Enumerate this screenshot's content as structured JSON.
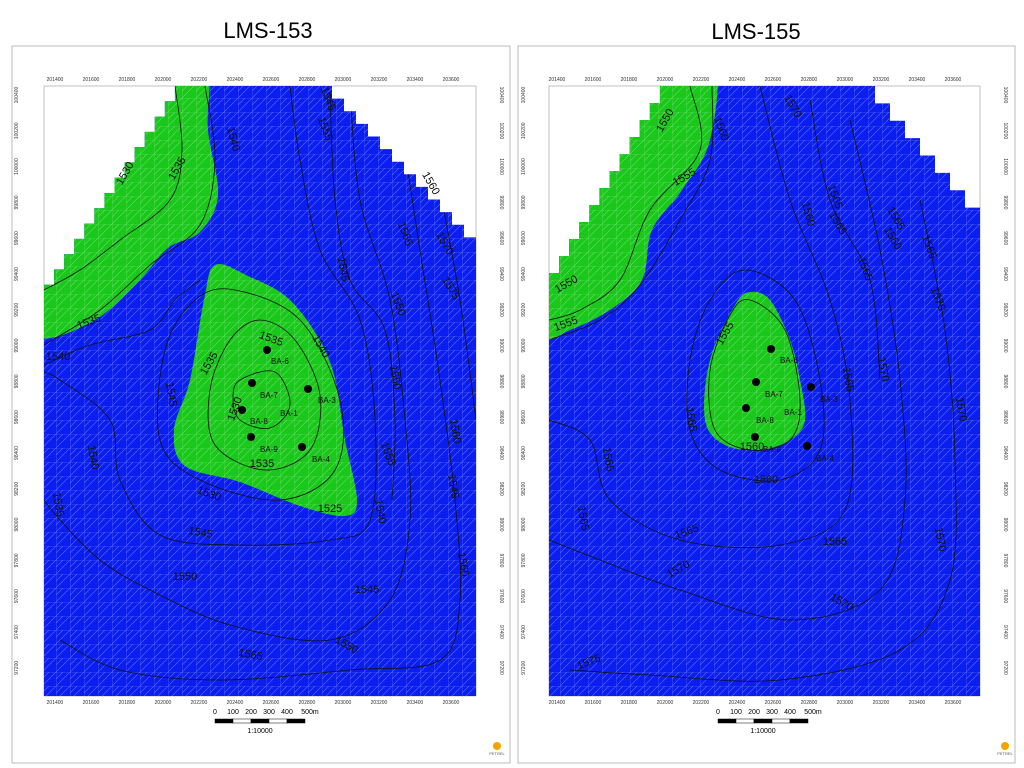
{
  "panels": [
    {
      "title": "LMS-153",
      "x_axis_labels": [
        201400,
        201600,
        201800,
        202000,
        202200,
        202400,
        202600,
        202800,
        203000,
        203200,
        203400,
        203600
      ],
      "y_axis_labels": [
        100400,
        100200,
        100000,
        99800,
        99600,
        99400,
        99200,
        99000,
        98800,
        98600,
        98400,
        98200,
        98000,
        97800,
        97600,
        97400,
        97200
      ],
      "contour_labels": [
        "1530",
        "1535",
        "1540",
        "1545",
        "1555",
        "1560",
        "1565",
        "1570",
        "1575",
        "1535",
        "1540",
        "1535",
        "1535",
        "1530",
        "1535",
        "1540",
        "1545",
        "1550",
        "1545",
        "1540",
        "1535",
        "1530",
        "1525",
        "1540",
        "1550",
        "1555",
        "1560",
        "1545",
        "1550",
        "1545",
        "1550",
        "1565",
        "1560",
        "1545"
      ],
      "wells": [
        "BA-6",
        "BA-7",
        "BA-3",
        "BA-1",
        "BA-8",
        "BA-9",
        "BA-4"
      ],
      "scale_bar": {
        "labels": [
          "0",
          "100",
          "200",
          "300",
          "400",
          "500m"
        ],
        "ratio": "1:10000"
      },
      "logo": "PETREL"
    },
    {
      "title": "LMS-155",
      "x_axis_labels": [
        201400,
        201600,
        201800,
        202000,
        202200,
        202400,
        202600,
        202800,
        203000,
        203200,
        203400,
        203600
      ],
      "y_axis_labels": [
        100400,
        100200,
        100000,
        99800,
        99600,
        99400,
        99200,
        99000,
        98800,
        98600,
        98400,
        98200,
        98000,
        97800,
        97600,
        97400,
        97200
      ],
      "contour_labels": [
        "1550",
        "1555",
        "1550",
        "1555",
        "1555",
        "1560",
        "1570",
        "1565",
        "1565",
        "1560",
        "1565",
        "1560",
        "1565",
        "1565",
        "1570",
        "1570",
        "1570",
        "1565",
        "1560",
        "1560",
        "1565",
        "1565",
        "1570",
        "1570",
        "1570",
        "1575",
        "1565",
        "1565",
        "1565"
      ],
      "wells": [
        "BA-6",
        "BA-7",
        "BA-3",
        "BA-1",
        "BA-8",
        "BA-9",
        "BA-4"
      ],
      "scale_bar": {
        "labels": [
          "0",
          "100",
          "200",
          "300",
          "400",
          "500m"
        ],
        "ratio": "1:10000"
      },
      "logo": "PETREL"
    }
  ]
}
